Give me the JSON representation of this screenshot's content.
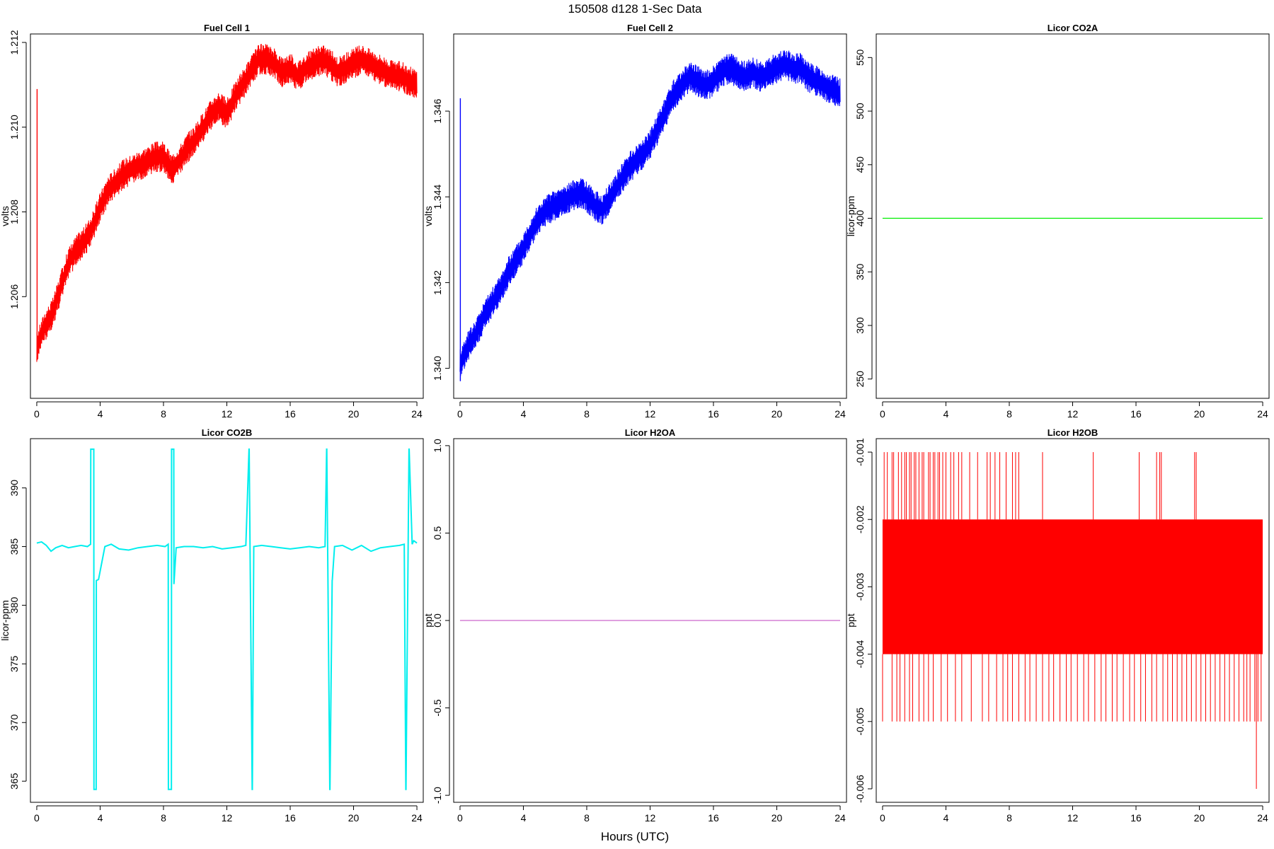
{
  "title": "150508   d128   1-Sec Data",
  "xlabel": "Hours (UTC)",
  "chart_data": [
    {
      "type": "line",
      "title": "Fuel Cell 1",
      "ylabel": "volts",
      "color": "#ff0000",
      "xlim": [
        -0.4,
        24.4
      ],
      "ylim": [
        1.2036,
        1.2122
      ],
      "xticks": [
        0,
        4,
        8,
        12,
        16,
        20,
        24
      ],
      "xtick_labels": [
        "0",
        "4",
        "8",
        "12",
        "16",
        "20",
        "24"
      ],
      "yticks": [
        1.206,
        1.208,
        1.21,
        1.212
      ],
      "ytick_labels": [
        "1.206",
        "1.208",
        "1.210",
        "1.212"
      ],
      "band_halfwidth": 0.00028,
      "spikes": [
        {
          "x": 0.02,
          "y0": 1.2045,
          "y1": 1.2109
        }
      ],
      "series": [
        {
          "x": [
            0,
            0.5,
            1,
            1.5,
            2,
            2.5,
            3,
            3.5,
            4,
            4.5,
            5,
            5.5,
            6,
            6.5,
            7,
            7.5,
            8,
            8.5,
            9,
            9.5,
            10,
            10.5,
            11,
            11.5,
            12,
            12.5,
            13,
            13.5,
            14,
            14.5,
            15,
            15.5,
            16,
            16.5,
            17,
            17.5,
            18,
            18.5,
            19,
            19.5,
            20,
            20.5,
            21,
            21.5,
            22,
            22.5,
            23,
            23.5,
            24
          ],
          "y": [
            1.2048,
            1.2053,
            1.2056,
            1.2062,
            1.2068,
            1.2071,
            1.2073,
            1.2076,
            1.2081,
            1.2085,
            1.2087,
            1.2089,
            1.209,
            1.2091,
            1.2092,
            1.2093,
            1.2093,
            1.209,
            1.2092,
            1.2095,
            1.2097,
            1.21,
            1.2103,
            1.2105,
            1.2103,
            1.2107,
            1.211,
            1.2113,
            1.2116,
            1.2116,
            1.2115,
            1.2113,
            1.2114,
            1.2112,
            1.2114,
            1.2115,
            1.2116,
            1.2115,
            1.2113,
            1.2114,
            1.2115,
            1.2116,
            1.2115,
            1.2114,
            1.2113,
            1.2112,
            1.2112,
            1.2111,
            1.211
          ]
        }
      ]
    },
    {
      "type": "line",
      "title": "Fuel Cell 2",
      "ylabel": "volts",
      "color": "#0000ff",
      "xlim": [
        -0.4,
        24.4
      ],
      "ylim": [
        1.3393,
        1.3478
      ],
      "xticks": [
        0,
        4,
        8,
        12,
        16,
        20,
        24
      ],
      "xtick_labels": [
        "0",
        "4",
        "8",
        "12",
        "16",
        "20",
        "24"
      ],
      "yticks": [
        1.34,
        1.342,
        1.344,
        1.346
      ],
      "ytick_labels": [
        "1.340",
        "1.342",
        "1.344",
        "1.346"
      ],
      "band_halfwidth": 0.00028,
      "spikes": [
        {
          "x": 0.02,
          "y0": 1.3397,
          "y1": 1.3463
        }
      ],
      "series": [
        {
          "x": [
            0,
            0.5,
            1,
            1.5,
            2,
            2.5,
            3,
            3.5,
            4,
            4.5,
            5,
            5.5,
            6,
            6.5,
            7,
            7.5,
            8,
            8.5,
            9,
            9.5,
            10,
            10.5,
            11,
            11.5,
            12,
            12.5,
            13,
            13.5,
            14,
            14.5,
            15,
            15.5,
            16,
            16.5,
            17,
            17.5,
            18,
            18.5,
            19,
            19.5,
            20,
            20.5,
            21,
            21.5,
            22,
            22.5,
            23,
            23.5,
            24
          ],
          "y": [
            1.3401,
            1.3405,
            1.3408,
            1.3412,
            1.3415,
            1.3418,
            1.3422,
            1.3425,
            1.3428,
            1.3432,
            1.3435,
            1.3437,
            1.3438,
            1.3439,
            1.344,
            1.3441,
            1.344,
            1.3438,
            1.3437,
            1.344,
            1.3443,
            1.3446,
            1.3448,
            1.345,
            1.3452,
            1.3456,
            1.346,
            1.3464,
            1.3466,
            1.3468,
            1.3467,
            1.3466,
            1.3467,
            1.3469,
            1.347,
            1.3469,
            1.3468,
            1.3469,
            1.3468,
            1.3469,
            1.347,
            1.3471,
            1.347,
            1.347,
            1.3468,
            1.3467,
            1.3466,
            1.3465,
            1.3464
          ]
        }
      ]
    },
    {
      "type": "line",
      "title": "Licor CO2A",
      "ylabel": "licor-ppm",
      "color": "#00ee00",
      "xlim": [
        -0.4,
        24.4
      ],
      "ylim": [
        232,
        572
      ],
      "xticks": [
        0,
        4,
        8,
        12,
        16,
        20,
        24
      ],
      "xtick_labels": [
        "0",
        "4",
        "8",
        "12",
        "16",
        "20",
        "24"
      ],
      "yticks": [
        250,
        300,
        350,
        400,
        450,
        500,
        550
      ],
      "ytick_labels": [
        "250",
        "300",
        "350",
        "400",
        "450",
        "500",
        "550"
      ],
      "series": [
        {
          "x": [
            0,
            24
          ],
          "y": [
            400,
            400
          ]
        }
      ]
    },
    {
      "type": "line",
      "title": "Licor CO2B",
      "ylabel": "licor-ppm",
      "color": "#00eeee",
      "xlim": [
        -0.4,
        24.4
      ],
      "ylim": [
        363.2,
        394.2
      ],
      "xticks": [
        0,
        4,
        8,
        12,
        16,
        20,
        24
      ],
      "xtick_labels": [
        "0",
        "4",
        "8",
        "12",
        "16",
        "20",
        "24"
      ],
      "yticks": [
        365,
        370,
        375,
        380,
        385,
        390
      ],
      "ytick_labels": [
        "365",
        "370",
        "375",
        "380",
        "385",
        "390"
      ],
      "series": [
        {
          "x": [
            0,
            0.3,
            0.6,
            0.9,
            1.2,
            1.6,
            2.0,
            2.4,
            2.8,
            3.2,
            3.4,
            3.41,
            3.6,
            3.61,
            3.75,
            3.76,
            3.9,
            4.3,
            4.7,
            5.2,
            5.8,
            6.4,
            7.0,
            7.6,
            8.1,
            8.3,
            8.31,
            8.5,
            8.51,
            8.65,
            8.66,
            8.8,
            9.3,
            9.9,
            10.5,
            11.1,
            11.7,
            12.3,
            12.9,
            13.2,
            13.4,
            13.41,
            13.6,
            13.61,
            13.7,
            14.2,
            14.8,
            15.4,
            16.0,
            16.6,
            17.2,
            17.8,
            18.2,
            18.3,
            18.31,
            18.5,
            18.51,
            18.65,
            18.66,
            18.8,
            19.3,
            19.9,
            20.5,
            21.1,
            21.7,
            22.3,
            22.9,
            23.2,
            23.3,
            23.31,
            23.5,
            23.51,
            23.7,
            23.8,
            24.0
          ],
          "y": [
            385.3,
            385.4,
            385.1,
            384.6,
            384.9,
            385.1,
            384.9,
            385.0,
            385.1,
            385.0,
            385.2,
            393.3,
            393.3,
            364.3,
            364.3,
            382.1,
            382.2,
            385.0,
            385.2,
            384.8,
            384.7,
            384.9,
            385.0,
            385.1,
            385.0,
            385.2,
            364.3,
            364.3,
            393.3,
            393.3,
            381.8,
            384.9,
            385.0,
            385.0,
            384.9,
            385.0,
            384.8,
            384.9,
            385.0,
            385.1,
            393.3,
            393.3,
            364.3,
            364.3,
            385.0,
            385.1,
            385.0,
            384.9,
            384.8,
            384.9,
            385.0,
            384.9,
            385.0,
            393.3,
            393.3,
            364.3,
            364.3,
            382.1,
            382.2,
            385.0,
            385.1,
            384.7,
            385.1,
            384.6,
            384.9,
            385.0,
            385.1,
            385.2,
            364.3,
            364.3,
            393.3,
            393.3,
            385.2,
            385.5,
            385.3
          ]
        }
      ]
    },
    {
      "type": "line",
      "title": "Licor H2OA",
      "ylabel": "ppt",
      "color": "#cc66cc",
      "xlim": [
        -0.4,
        24.4
      ],
      "ylim": [
        -1.04,
        1.04
      ],
      "xticks": [
        0,
        4,
        8,
        12,
        16,
        20,
        24
      ],
      "xtick_labels": [
        "0",
        "4",
        "8",
        "12",
        "16",
        "20",
        "24"
      ],
      "yticks": [
        -1.0,
        -0.5,
        0.0,
        0.5,
        1.0
      ],
      "ytick_labels": [
        "-1.0",
        "-0.5",
        "0.0",
        "0.5",
        "1.0"
      ],
      "series": [
        {
          "x": [
            0,
            24
          ],
          "y": [
            0,
            0
          ]
        }
      ]
    },
    {
      "type": "line",
      "title": "Licor H2OB",
      "ylabel": "ppt",
      "color": "#ff0000",
      "xlim": [
        -0.4,
        24.4
      ],
      "ylim": [
        -0.0062,
        -0.0008
      ],
      "xticks": [
        0,
        4,
        8,
        12,
        16,
        20,
        24
      ],
      "xtick_labels": [
        "0",
        "4",
        "8",
        "12",
        "16",
        "20",
        "24"
      ],
      "yticks": [
        -0.006,
        -0.005,
        -0.004,
        -0.003,
        -0.002,
        -0.001
      ],
      "ytick_labels": [
        "-0.006",
        "-0.005",
        "-0.004",
        "-0.003",
        "-0.002",
        "-0.001"
      ],
      "band": {
        "x0": 0,
        "x1": 24,
        "y0": -0.004,
        "y1": -0.002
      },
      "upper_spikes": {
        "y": -0.001,
        "x": [
          0.1,
          0.3,
          0.6,
          0.7,
          1.0,
          1.2,
          1.4,
          1.5,
          1.7,
          1.8,
          2.0,
          2.1,
          2.3,
          2.5,
          2.6,
          2.9,
          3.0,
          3.2,
          3.3,
          3.5,
          3.6,
          3.8,
          4.0,
          4.3,
          4.5,
          4.8,
          5.0,
          5.5,
          6.0,
          6.6,
          6.8,
          7.1,
          7.4,
          7.8,
          8.2,
          8.4,
          8.6,
          10.1,
          13.3,
          16.2,
          17.3,
          17.5,
          17.6,
          19.7,
          19.8
        ]
      },
      "lower_spikes": {
        "y": -0.005,
        "x": [
          0.0,
          0.6,
          0.9,
          1.1,
          1.4,
          1.7,
          1.9,
          2.3,
          2.6,
          2.9,
          3.2,
          3.7,
          4.1,
          4.6,
          5.0,
          5.6,
          6.3,
          6.7,
          7.2,
          7.6,
          7.9,
          8.2,
          8.6,
          9.0,
          9.3,
          9.7,
          10.1,
          10.5,
          10.8,
          11.2,
          11.6,
          11.9,
          12.3,
          12.7,
          13.0,
          13.4,
          13.8,
          14.1,
          14.5,
          14.8,
          15.2,
          15.6,
          15.9,
          16.3,
          16.6,
          17.0,
          17.3,
          17.7,
          18.0,
          18.3,
          18.6,
          18.9,
          19.2,
          19.5,
          19.8,
          20.1,
          20.4,
          20.7,
          21.0,
          21.3,
          21.6,
          21.9,
          22.2,
          22.5,
          22.8,
          23.0,
          23.2,
          23.5,
          23.7,
          23.9
        ]
      },
      "deep_spike": {
        "x": 23.6,
        "y": -0.006
      },
      "series": [
        {
          "x": [
            0,
            24
          ],
          "y": [
            -0.003,
            -0.003
          ]
        }
      ]
    }
  ]
}
